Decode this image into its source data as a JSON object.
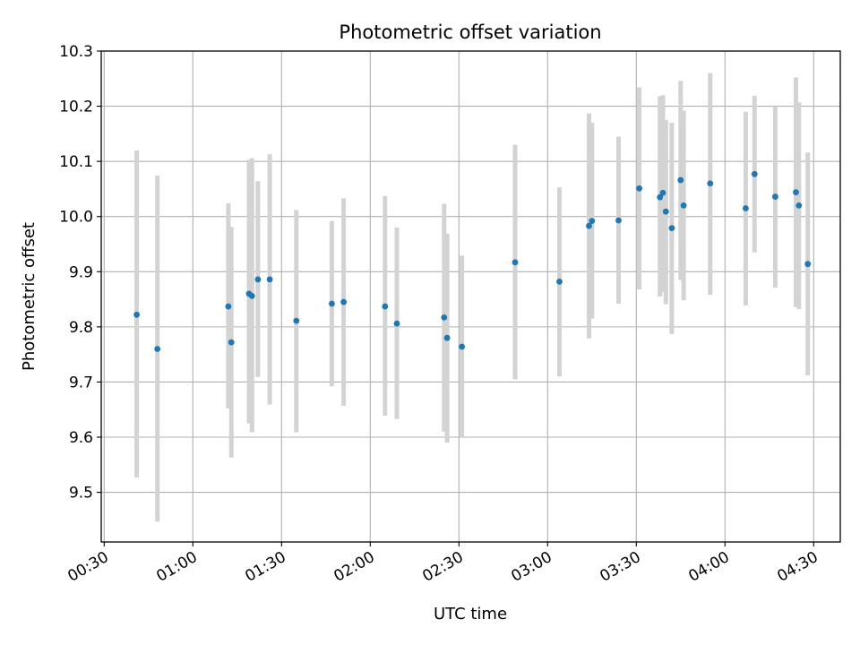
{
  "chart_data": {
    "type": "scatter",
    "title": "Photometric offset variation",
    "xlabel": "UTC time",
    "ylabel": "Photometric offset",
    "x_tick_labels": [
      "00:30",
      "01:00",
      "01:30",
      "02:00",
      "02:30",
      "03:00",
      "03:30",
      "04:00",
      "04:30"
    ],
    "y_tick_labels": [
      "9.5",
      "9.6",
      "9.7",
      "9.8",
      "9.9",
      "10.0",
      "10.1",
      "10.2",
      "10.3"
    ],
    "y_ticks": [
      9.5,
      9.6,
      9.7,
      9.8,
      9.9,
      10.0,
      10.1,
      10.2,
      10.3
    ],
    "xlim": [
      "00:29",
      "04:39"
    ],
    "ylim": [
      9.41,
      10.3
    ],
    "grid": true,
    "point_color": "#1f77b4",
    "errorbar_color": "#d3d3d3",
    "points": [
      {
        "t": "00:41",
        "y": 9.822,
        "lo": 9.527,
        "hi": 10.12
      },
      {
        "t": "00:48",
        "y": 9.76,
        "lo": 9.447,
        "hi": 10.074
      },
      {
        "t": "01:12",
        "y": 9.837,
        "lo": 9.652,
        "hi": 10.024
      },
      {
        "t": "01:13",
        "y": 9.772,
        "lo": 9.563,
        "hi": 9.981
      },
      {
        "t": "01:19",
        "y": 9.86,
        "lo": 9.625,
        "hi": 10.103
      },
      {
        "t": "01:20",
        "y": 9.856,
        "lo": 9.609,
        "hi": 10.106
      },
      {
        "t": "01:22",
        "y": 9.886,
        "lo": 9.709,
        "hi": 10.064
      },
      {
        "t": "01:26",
        "y": 9.886,
        "lo": 9.659,
        "hi": 10.113
      },
      {
        "t": "01:35",
        "y": 9.811,
        "lo": 9.609,
        "hi": 10.012
      },
      {
        "t": "01:47",
        "y": 9.842,
        "lo": 9.692,
        "hi": 9.992
      },
      {
        "t": "01:51",
        "y": 9.845,
        "lo": 9.657,
        "hi": 10.033
      },
      {
        "t": "02:05",
        "y": 9.837,
        "lo": 9.639,
        "hi": 10.037
      },
      {
        "t": "02:09",
        "y": 9.806,
        "lo": 9.633,
        "hi": 9.98
      },
      {
        "t": "02:25",
        "y": 9.817,
        "lo": 9.61,
        "hi": 10.023
      },
      {
        "t": "02:26",
        "y": 9.78,
        "lo": 9.59,
        "hi": 9.969
      },
      {
        "t": "02:31",
        "y": 9.764,
        "lo": 9.6,
        "hi": 9.929
      },
      {
        "t": "02:49",
        "y": 9.917,
        "lo": 9.705,
        "hi": 10.13
      },
      {
        "t": "03:04",
        "y": 9.882,
        "lo": 9.71,
        "hi": 10.053
      },
      {
        "t": "03:14",
        "y": 9.983,
        "lo": 9.779,
        "hi": 10.187
      },
      {
        "t": "03:15",
        "y": 9.992,
        "lo": 9.815,
        "hi": 10.17
      },
      {
        "t": "03:24",
        "y": 9.993,
        "lo": 9.842,
        "hi": 10.145
      },
      {
        "t": "03:31",
        "y": 10.051,
        "lo": 9.868,
        "hi": 10.234
      },
      {
        "t": "03:38",
        "y": 10.035,
        "lo": 9.855,
        "hi": 10.218
      },
      {
        "t": "03:39",
        "y": 10.043,
        "lo": 9.863,
        "hi": 10.22
      },
      {
        "t": "03:40",
        "y": 10.009,
        "lo": 9.841,
        "hi": 10.175
      },
      {
        "t": "03:42",
        "y": 9.979,
        "lo": 9.787,
        "hi": 10.17
      },
      {
        "t": "03:45",
        "y": 10.066,
        "lo": 9.885,
        "hi": 10.246
      },
      {
        "t": "03:46",
        "y": 10.02,
        "lo": 9.848,
        "hi": 10.192
      },
      {
        "t": "03:55",
        "y": 10.06,
        "lo": 9.858,
        "hi": 10.26
      },
      {
        "t": "04:07",
        "y": 10.015,
        "lo": 9.839,
        "hi": 10.19
      },
      {
        "t": "04:10",
        "y": 10.077,
        "lo": 9.935,
        "hi": 10.219
      },
      {
        "t": "04:17",
        "y": 10.036,
        "lo": 9.871,
        "hi": 10.2
      },
      {
        "t": "04:24",
        "y": 10.044,
        "lo": 9.836,
        "hi": 10.252
      },
      {
        "t": "04:25",
        "y": 10.02,
        "lo": 9.832,
        "hi": 10.207
      },
      {
        "t": "04:28",
        "y": 9.914,
        "lo": 9.712,
        "hi": 10.116
      }
    ]
  }
}
